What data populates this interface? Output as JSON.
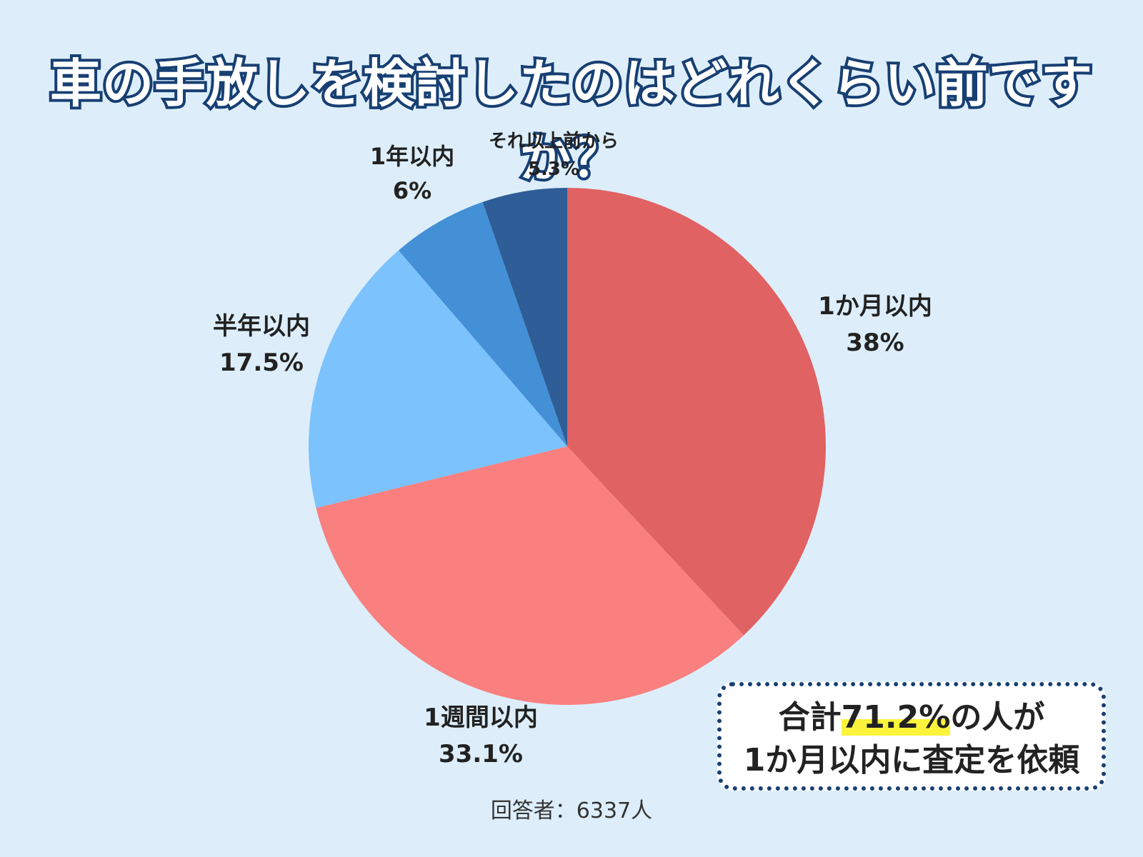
{
  "chart_data": {
    "type": "pie",
    "title": "車の手放しを検討したのはどれくらい前ですか？",
    "slices": [
      {
        "label": "1か月以内",
        "value": 38,
        "value_label": "38%",
        "color": "#e06262"
      },
      {
        "label": "1週間以内",
        "value": 33.1,
        "value_label": "33.1%",
        "color": "#fa7f7f"
      },
      {
        "label": "半年以内",
        "value": 17.5,
        "value_label": "17.5%",
        "color": "#7cc2fd"
      },
      {
        "label": "1年以内",
        "value": 6,
        "value_label": "6%",
        "color": "#4390d6"
      },
      {
        "label": "それ以上前から",
        "value": 5.3,
        "value_label": "5.3%",
        "color": "#2e5d97"
      }
    ],
    "start": "12 o'clock",
    "direction": "clockwise"
  },
  "summary": {
    "line1_prefix": "合計",
    "line1_highlight": "71.2%",
    "line1_suffix": "の人が",
    "line2": "1か月以内に査定を依頼",
    "highlight_color": "#fbf43b",
    "border_color": "#173f73"
  },
  "footnote": "回答者：6337人",
  "colors": {
    "background": "#ddeefa",
    "title_outline": "#173f73"
  }
}
